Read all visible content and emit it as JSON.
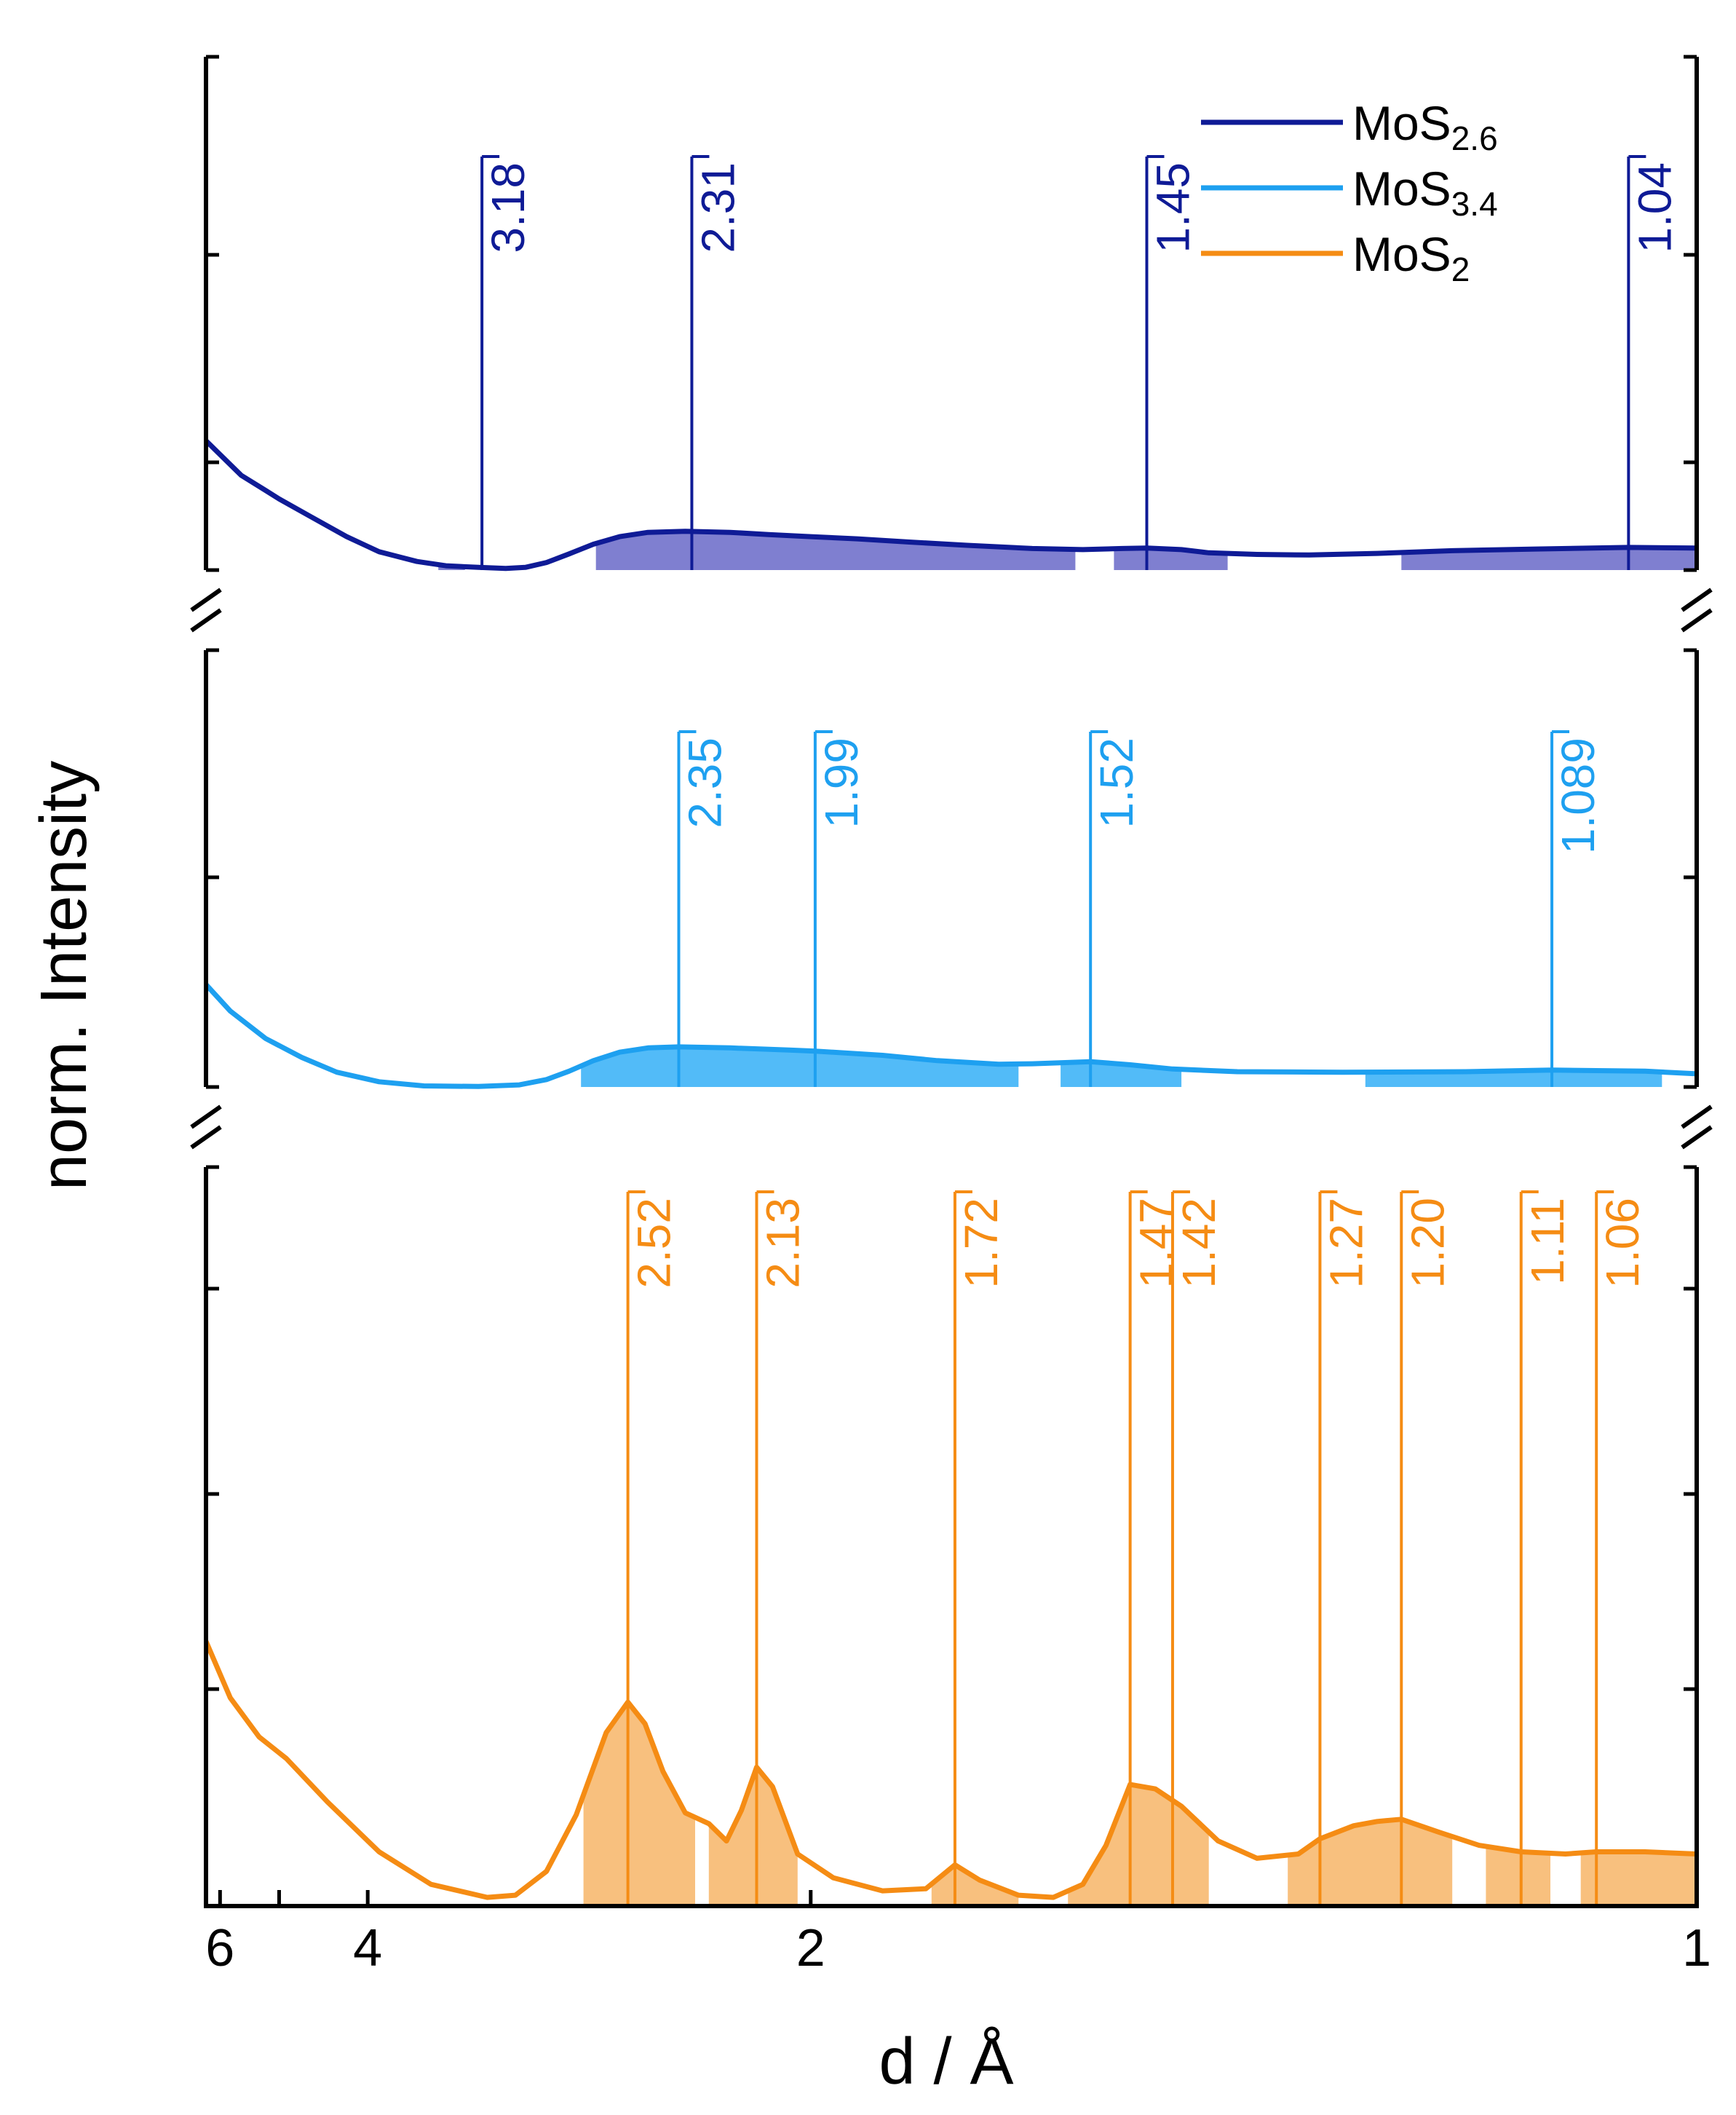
{
  "chart_data": {
    "type": "line",
    "xlabel": "d / Å",
    "ylabel": "norm. Intensity",
    "x_scale": "reciprocal",
    "x_direction": "decreasing left-to-right",
    "xlim": [
      6.3,
      1.0
    ],
    "x_ticks": [
      {
        "value": 6,
        "label": "6"
      },
      {
        "value": 5,
        "label": ""
      },
      {
        "value": 4,
        "label": "4"
      },
      {
        "value": 2,
        "label": "2"
      },
      {
        "value": 1,
        "label": "1"
      }
    ],
    "y_ticks_visible": true,
    "y_tick_labels_visible": false,
    "axis_breaks": 2,
    "legend": {
      "placement": "top-right",
      "entries": [
        {
          "label": "MoS",
          "sub": "2.6",
          "color": "#0f1b96"
        },
        {
          "label": "MoS",
          "sub": "3.4",
          "color": "#1ea0f0"
        },
        {
          "label": "MoS",
          "sub": "2",
          "color": "#f58c14"
        }
      ]
    },
    "panels": [
      {
        "series_name": "MoS2.6",
        "color": "#0f1b96",
        "fill_color": "#7f7fd0",
        "ylim": [
          0,
          1
        ],
        "curve": [
          [
            6.3,
            1.2
          ],
          [
            5.6,
            0.88
          ],
          [
            5.2,
            0.74
          ],
          [
            5.0,
            0.66
          ],
          [
            4.6,
            0.5
          ],
          [
            4.2,
            0.31
          ],
          [
            3.9,
            0.17
          ],
          [
            3.6,
            0.08
          ],
          [
            3.4,
            0.04
          ],
          [
            3.2,
            0.025
          ],
          [
            3.05,
            0.015
          ],
          [
            2.95,
            0.025
          ],
          [
            2.85,
            0.07
          ],
          [
            2.75,
            0.15
          ],
          [
            2.65,
            0.24
          ],
          [
            2.55,
            0.31
          ],
          [
            2.45,
            0.35
          ],
          [
            2.33,
            0.36
          ],
          [
            2.2,
            0.35
          ],
          [
            2.1,
            0.33
          ],
          [
            2.0,
            0.31
          ],
          [
            1.9,
            0.29
          ],
          [
            1.8,
            0.26
          ],
          [
            1.7,
            0.23
          ],
          [
            1.6,
            0.2
          ],
          [
            1.53,
            0.19
          ],
          [
            1.48,
            0.2
          ],
          [
            1.45,
            0.205
          ],
          [
            1.41,
            0.19
          ],
          [
            1.38,
            0.16
          ],
          [
            1.33,
            0.145
          ],
          [
            1.28,
            0.14
          ],
          [
            1.22,
            0.155
          ],
          [
            1.16,
            0.18
          ],
          [
            1.1,
            0.195
          ],
          [
            1.04,
            0.21
          ],
          [
            1.0,
            0.205
          ]
        ],
        "fill_regions": [
          [
            3.45,
            3.28
          ],
          [
            2.64,
            1.54
          ],
          [
            1.49,
            1.36
          ],
          [
            1.2,
            1.0
          ]
        ],
        "peaks": [
          {
            "d": 3.18,
            "label": "3.18"
          },
          {
            "d": 2.31,
            "label": "2.31"
          },
          {
            "d": 1.45,
            "label": "1.45"
          },
          {
            "d": 1.04,
            "label": "1.04"
          }
        ]
      },
      {
        "series_name": "MoS3.4",
        "color": "#1ea0f0",
        "fill_color": "#52bbf8",
        "ylim": [
          0,
          1
        ],
        "curve": [
          [
            6.3,
            0.97
          ],
          [
            5.8,
            0.72
          ],
          [
            5.2,
            0.46
          ],
          [
            4.7,
            0.28
          ],
          [
            4.3,
            0.14
          ],
          [
            3.9,
            0.05
          ],
          [
            3.55,
            0.01
          ],
          [
            3.2,
            0.005
          ],
          [
            2.98,
            0.02
          ],
          [
            2.85,
            0.07
          ],
          [
            2.75,
            0.15
          ],
          [
            2.65,
            0.25
          ],
          [
            2.55,
            0.33
          ],
          [
            2.45,
            0.37
          ],
          [
            2.35,
            0.38
          ],
          [
            2.2,
            0.37
          ],
          [
            2.05,
            0.35
          ],
          [
            1.99,
            0.34
          ],
          [
            1.85,
            0.3
          ],
          [
            1.75,
            0.25
          ],
          [
            1.65,
            0.215
          ],
          [
            1.6,
            0.22
          ],
          [
            1.52,
            0.24
          ],
          [
            1.47,
            0.21
          ],
          [
            1.42,
            0.17
          ],
          [
            1.35,
            0.145
          ],
          [
            1.25,
            0.14
          ],
          [
            1.15,
            0.145
          ],
          [
            1.089,
            0.16
          ],
          [
            1.03,
            0.15
          ],
          [
            1.0,
            0.125
          ]
        ],
        "fill_regions": [
          [
            2.7,
            1.62
          ],
          [
            1.56,
            1.41
          ],
          [
            1.23,
            1.02
          ]
        ],
        "peaks": [
          {
            "d": 2.35,
            "label": "2.35"
          },
          {
            "d": 1.99,
            "label": "1.99"
          },
          {
            "d": 1.52,
            "label": "1.52"
          },
          {
            "d": 1.089,
            "label": "1.089"
          }
        ]
      },
      {
        "series_name": "MoS2",
        "color": "#f58c14",
        "fill_color": "#f8c07e",
        "ylim": [
          0,
          1
        ],
        "curve": [
          [
            6.3,
            1.22
          ],
          [
            5.8,
            0.96
          ],
          [
            5.3,
            0.78
          ],
          [
            4.9,
            0.68
          ],
          [
            4.4,
            0.48
          ],
          [
            3.9,
            0.25
          ],
          [
            3.5,
            0.1
          ],
          [
            3.15,
            0.04
          ],
          [
            3.0,
            0.05
          ],
          [
            2.85,
            0.16
          ],
          [
            2.72,
            0.42
          ],
          [
            2.6,
            0.8
          ],
          [
            2.52,
            0.94
          ],
          [
            2.46,
            0.84
          ],
          [
            2.4,
            0.62
          ],
          [
            2.33,
            0.43
          ],
          [
            2.26,
            0.38
          ],
          [
            2.21,
            0.3
          ],
          [
            2.17,
            0.44
          ],
          [
            2.13,
            0.64
          ],
          [
            2.09,
            0.55
          ],
          [
            2.03,
            0.24
          ],
          [
            1.95,
            0.13
          ],
          [
            1.85,
            0.07
          ],
          [
            1.77,
            0.08
          ],
          [
            1.72,
            0.19
          ],
          [
            1.68,
            0.12
          ],
          [
            1.62,
            0.05
          ],
          [
            1.57,
            0.04
          ],
          [
            1.53,
            0.1
          ],
          [
            1.5,
            0.28
          ],
          [
            1.47,
            0.56
          ],
          [
            1.44,
            0.54
          ],
          [
            1.41,
            0.46
          ],
          [
            1.37,
            0.3
          ],
          [
            1.33,
            0.22
          ],
          [
            1.29,
            0.24
          ],
          [
            1.27,
            0.31
          ],
          [
            1.24,
            0.37
          ],
          [
            1.22,
            0.39
          ],
          [
            1.2,
            0.4
          ],
          [
            1.17,
            0.34
          ],
          [
            1.14,
            0.28
          ],
          [
            1.11,
            0.25
          ],
          [
            1.08,
            0.24
          ],
          [
            1.06,
            0.25
          ],
          [
            1.03,
            0.25
          ],
          [
            1.0,
            0.24
          ]
        ],
        "fill_regions": [
          [
            2.69,
            2.3
          ],
          [
            2.26,
            2.03
          ],
          [
            1.76,
            1.62
          ],
          [
            1.55,
            1.38
          ],
          [
            1.3,
            1.16
          ],
          [
            1.135,
            1.09
          ],
          [
            1.07,
            1.0
          ]
        ],
        "peaks": [
          {
            "d": 2.52,
            "label": "2.52"
          },
          {
            "d": 2.13,
            "label": "2.13"
          },
          {
            "d": 1.72,
            "label": "1.72"
          },
          {
            "d": 1.47,
            "label": "1.47"
          },
          {
            "d": 1.42,
            "label": "1.42"
          },
          {
            "d": 1.27,
            "label": "1.27"
          },
          {
            "d": 1.2,
            "label": "1.20"
          },
          {
            "d": 1.11,
            "label": "1.11"
          },
          {
            "d": 1.06,
            "label": "1.06"
          }
        ]
      }
    ]
  }
}
